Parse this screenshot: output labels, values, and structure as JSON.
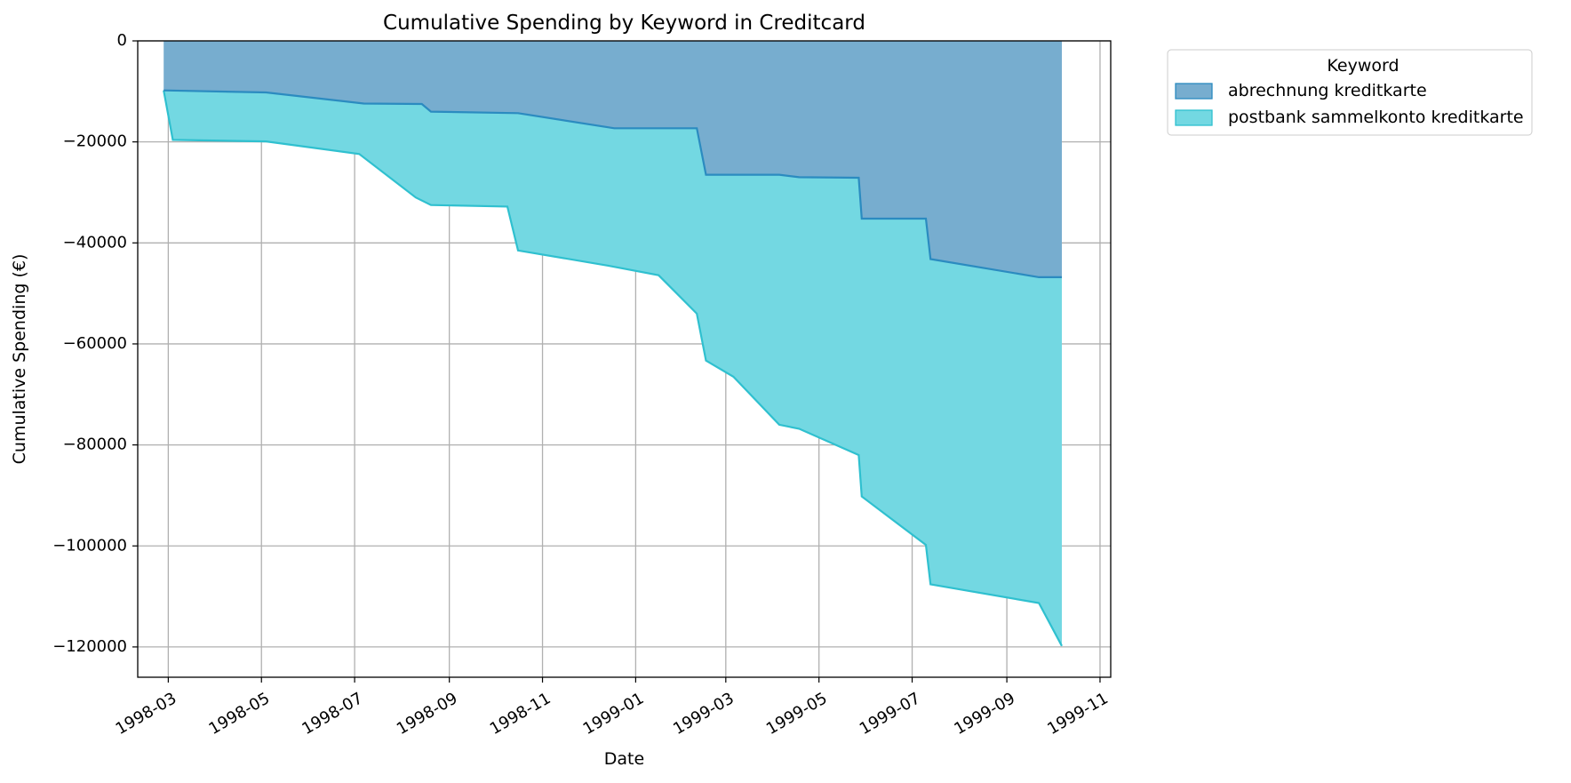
{
  "chart_data": {
    "type": "area",
    "stacked": true,
    "title": "Cumulative Spending by Keyword in Creditcard",
    "xlabel": "Date",
    "ylabel": "Cumulative Spending (€)",
    "xlim": [
      "1998-02-09",
      "1999-11-08"
    ],
    "ylim": [
      -126000,
      0
    ],
    "x_ticks": [
      "1998-03",
      "1998-05",
      "1998-07",
      "1998-09",
      "1998-11",
      "1999-01",
      "1999-03",
      "1999-05",
      "1999-07",
      "1999-09",
      "1999-11"
    ],
    "x_ticks_text": [
      "1998-03",
      "1998-05",
      "1998-07",
      "1998-09",
      "1998-11",
      "1999-01",
      "1999-03",
      "1999-05",
      "1999-07",
      "1999-09",
      "1999-11"
    ],
    "y_ticks": [
      0,
      -20000,
      -40000,
      -60000,
      -80000,
      -100000,
      -120000
    ],
    "y_ticks_text": [
      "0",
      "−20000",
      "−40000",
      "−60000",
      "−80000",
      "−100000",
      "−120000"
    ],
    "grid": true,
    "legend": {
      "title": "Keyword",
      "placement": "outside-top-right"
    },
    "series": [
      {
        "name": "abrechnung kreditkarte",
        "fill": "#77adcf",
        "line": "#2b8bc0",
        "points": [
          [
            "1998-02-26",
            -9800
          ],
          [
            "1998-05-04",
            -10200
          ],
          [
            "1998-07-07",
            -12400
          ],
          [
            "1998-08-14",
            -12500
          ],
          [
            "1998-08-20",
            -14000
          ],
          [
            "1998-10-16",
            -14300
          ],
          [
            "1998-12-18",
            -17300
          ],
          [
            "1999-02-10",
            -17300
          ],
          [
            "1999-02-16",
            -26500
          ],
          [
            "1999-04-05",
            -26500
          ],
          [
            "1999-04-18",
            -27000
          ],
          [
            "1999-05-27",
            -27100
          ],
          [
            "1999-05-29",
            -35200
          ],
          [
            "1999-07-10",
            -35200
          ],
          [
            "1999-07-13",
            -43200
          ],
          [
            "1999-09-22",
            -46800
          ],
          [
            "1999-10-07",
            -46800
          ]
        ]
      },
      {
        "name": "postbank sammelkonto kreditkarte",
        "fill": "#73d8e2",
        "line": "#2fc0cf",
        "points": [
          [
            "1998-02-26",
            -9800
          ],
          [
            "1998-03-04",
            -19600
          ],
          [
            "1998-05-04",
            -19900
          ],
          [
            "1998-07-04",
            -22400
          ],
          [
            "1998-08-10",
            -31000
          ],
          [
            "1998-08-20",
            -32500
          ],
          [
            "1998-10-09",
            -32800
          ],
          [
            "1998-10-16",
            -41500
          ],
          [
            "1998-12-14",
            -44500
          ],
          [
            "1999-01-16",
            -46400
          ],
          [
            "1999-02-10",
            -54000
          ],
          [
            "1999-02-16",
            -63300
          ],
          [
            "1999-03-06",
            -66500
          ],
          [
            "1999-04-05",
            -76000
          ],
          [
            "1999-04-18",
            -76800
          ],
          [
            "1999-05-27",
            -82000
          ],
          [
            "1999-05-29",
            -90200
          ],
          [
            "1999-07-10",
            -99800
          ],
          [
            "1999-07-13",
            -107600
          ],
          [
            "1999-09-22",
            -111300
          ],
          [
            "1999-10-07",
            -119800
          ]
        ]
      }
    ]
  }
}
